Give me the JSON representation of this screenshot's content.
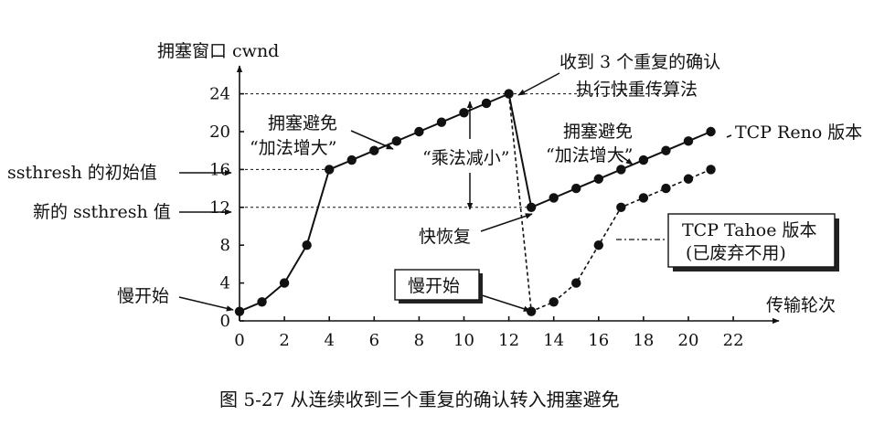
{
  "chart_data": {
    "type": "line",
    "ylabel": "拥塞窗口 cwnd",
    "xlabel": "传输轮次",
    "x_ticks": [
      0,
      2,
      4,
      6,
      8,
      10,
      12,
      14,
      16,
      18,
      20,
      22
    ],
    "y_ticks": [
      0,
      4,
      8,
      12,
      16,
      20,
      24
    ],
    "xlim": [
      0,
      22
    ],
    "ylim": [
      0,
      24
    ],
    "grid": false,
    "series": [
      {
        "name": "TCP Reno 版本",
        "style": "solid",
        "x": [
          0,
          1,
          2,
          3,
          4,
          5,
          6,
          7,
          8,
          9,
          10,
          11,
          12,
          13,
          14,
          15,
          16,
          17,
          18,
          19,
          20,
          21
        ],
        "y": [
          1,
          2,
          4,
          8,
          16,
          17,
          18,
          19,
          20,
          21,
          22,
          23,
          24,
          12,
          13,
          14,
          15,
          16,
          17,
          18,
          19,
          20
        ]
      },
      {
        "name": "TCP Tahoe 版本",
        "style": "dashed",
        "x": [
          12,
          13,
          14,
          15,
          16,
          17,
          18,
          19,
          20,
          21
        ],
        "y": [
          24,
          1,
          2,
          4,
          8,
          12,
          13,
          14,
          15,
          16
        ]
      }
    ],
    "reference_lines": [
      {
        "y": 24,
        "x_end": 19.5
      },
      {
        "y": 16,
        "x_end": 4
      },
      {
        "y": 12,
        "x_end": 13
      }
    ],
    "annotations": {
      "fast_retransmit_1": "收到 3 个重复的确认",
      "fast_retransmit_2": "执行快重传算法",
      "ca1_line1": "拥塞避免",
      "ca1_line2": "“加法增大”",
      "ca2_line1": "拥塞避免",
      "ca2_line2": "“加法增大”",
      "mult_decrease": "“乘法减小”",
      "reno_label": "TCP Reno 版本",
      "fast_recovery": "快恢复",
      "tahoe_line1": "TCP Tahoe 版本",
      "tahoe_line2": "(已废弃不用)",
      "ssthresh_init": "ssthresh 的初始值",
      "ssthresh_new": "新的 ssthresh 值",
      "slow_start_left": "慢开始",
      "slow_start_box": "慢开始"
    },
    "caption": "图 5-27    从连续收到三个重复的确认转入拥塞避免"
  }
}
